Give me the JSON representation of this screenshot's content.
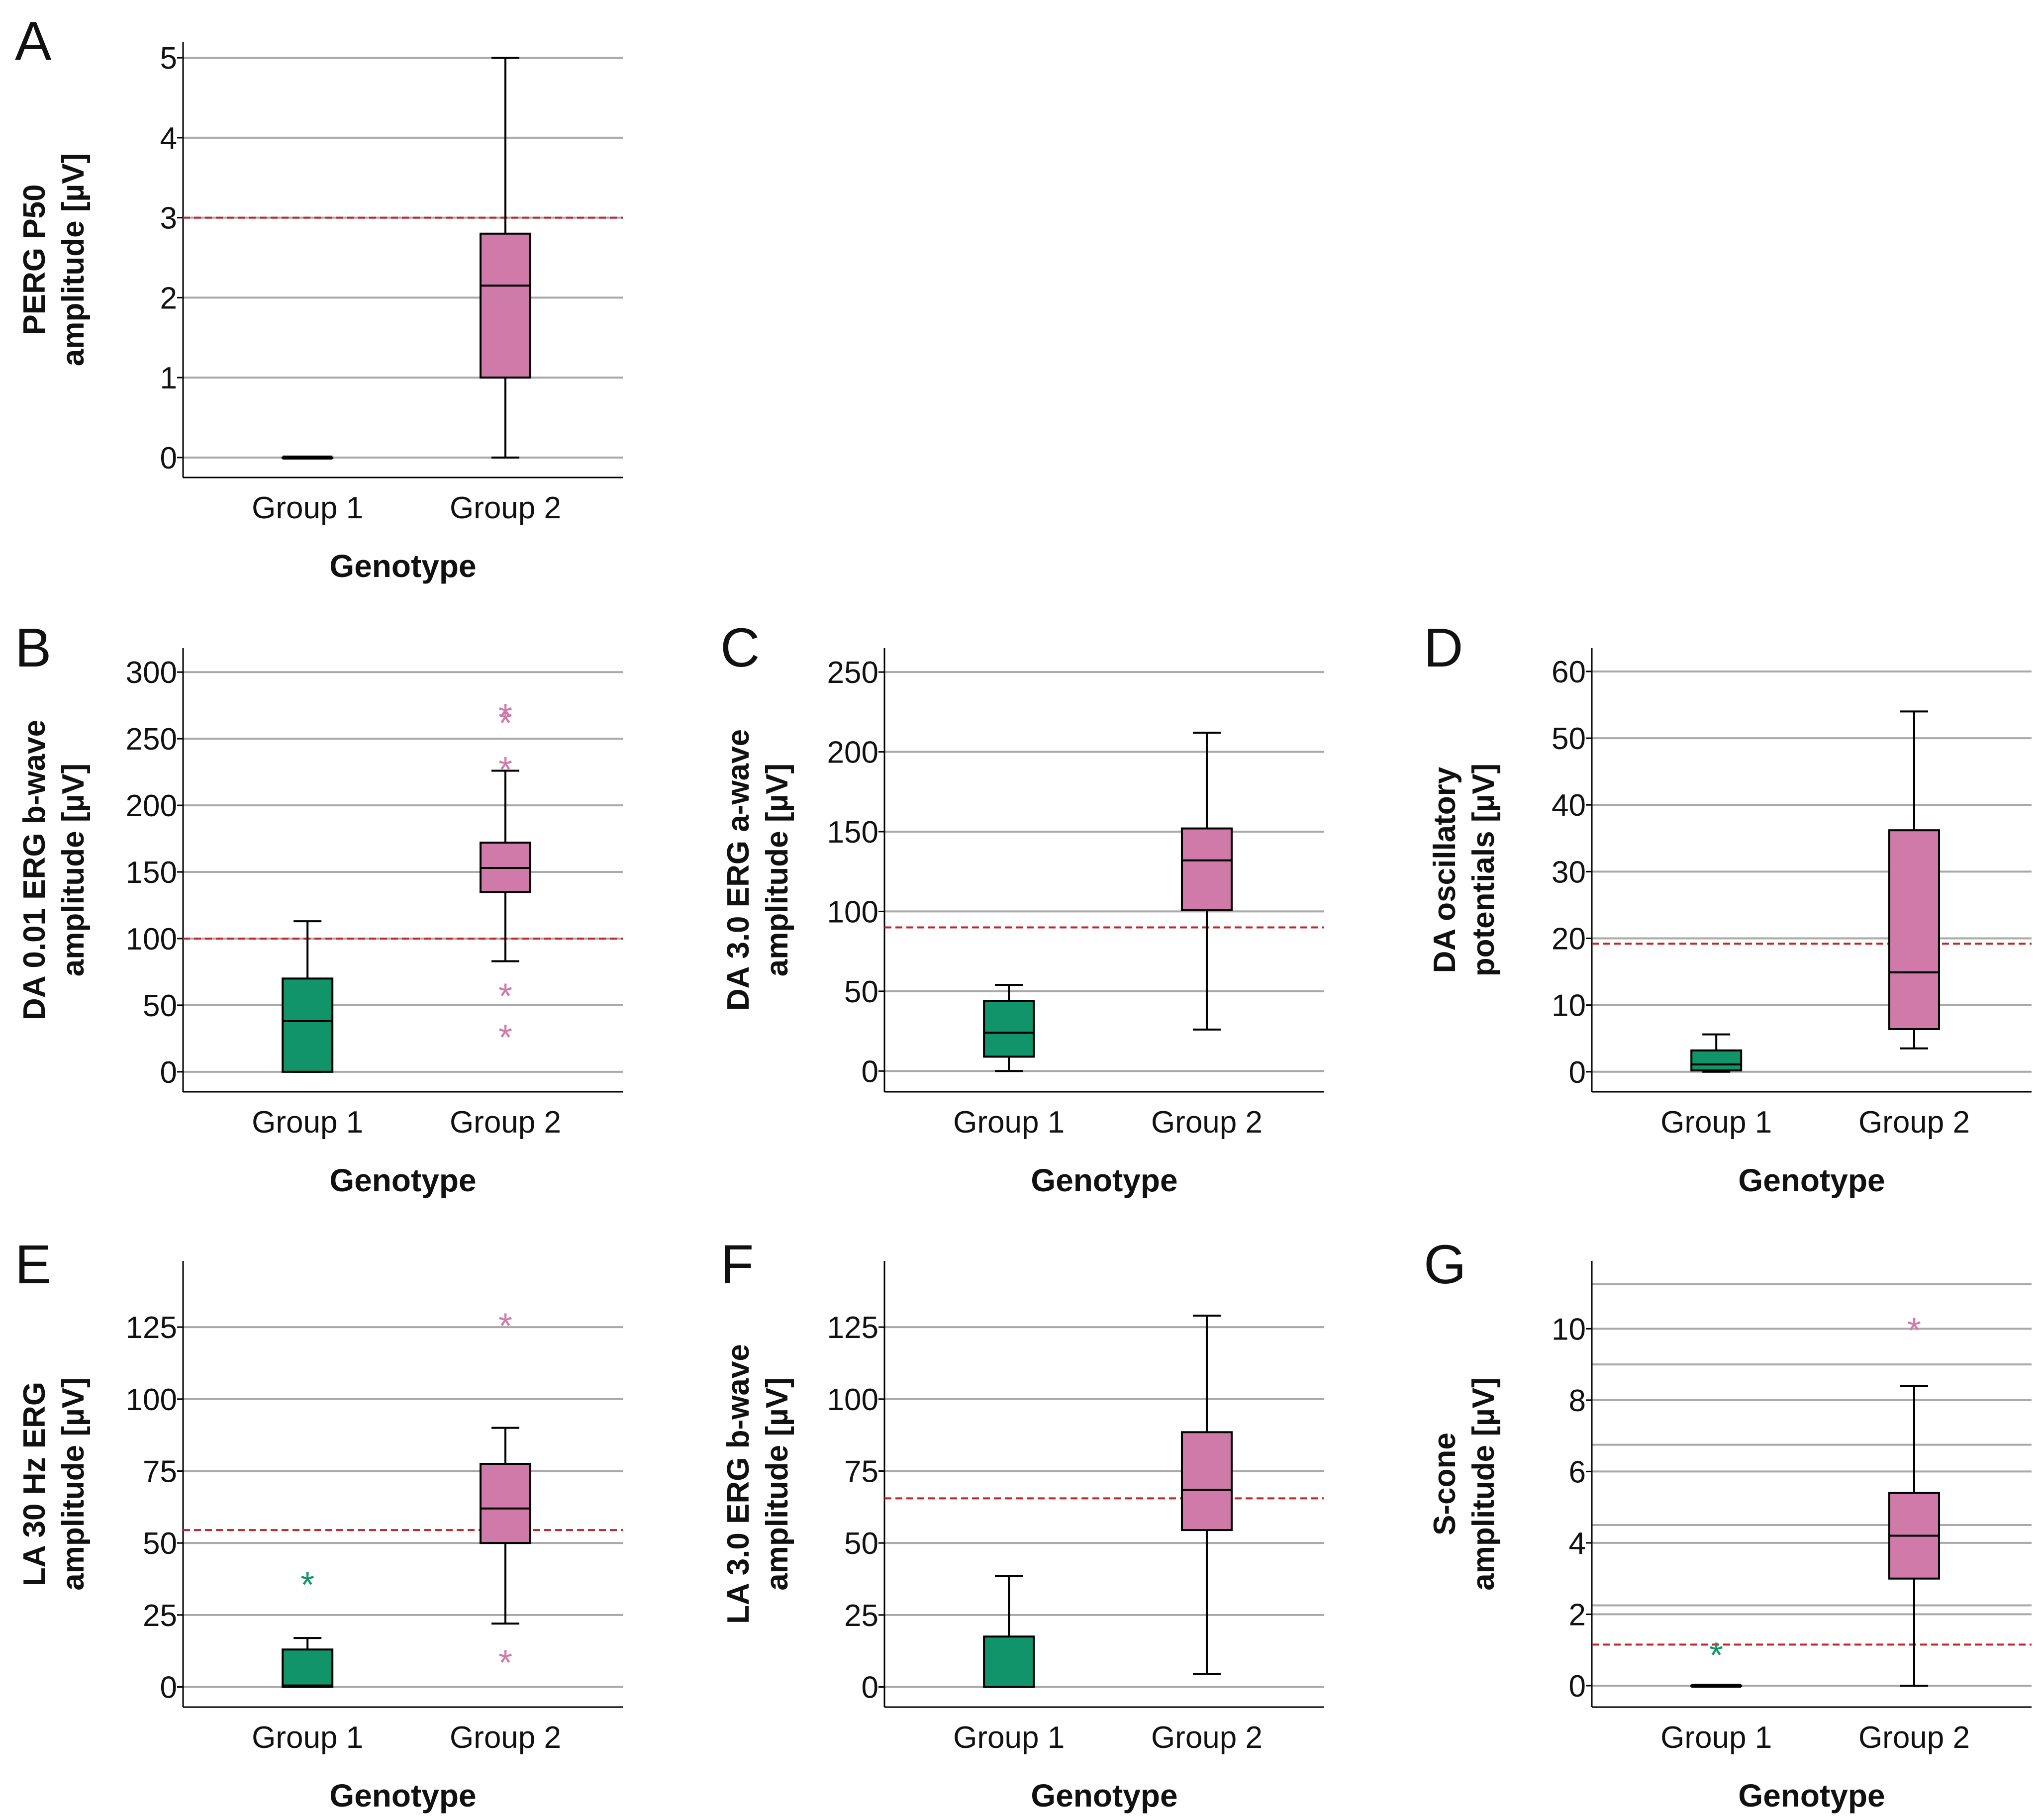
{
  "colors": {
    "group1": "#12946a",
    "group2": "#cf7aa9",
    "reference": "#c0262c",
    "grid": "#a9a9a9",
    "axis": "#000000"
  },
  "chart_data": [
    {
      "panel": "A",
      "type": "boxplot",
      "title": "",
      "xlabel": "Genotype",
      "ylabel_lines": [
        "PERG P50",
        "amplitude [µV]"
      ],
      "categories": [
        "Group 1",
        "Group 2"
      ],
      "ylim": [
        -0.25,
        5.2
      ],
      "yticks": [
        0,
        1,
        2,
        3,
        4,
        5
      ],
      "extra_gridlines": [],
      "reference_line": 3.0,
      "boxes": [
        {
          "group": "Group 1",
          "min": 0,
          "q1": 0,
          "median": 0,
          "q3": 0,
          "max": 0,
          "outliers": []
        },
        {
          "group": "Group 2",
          "min": 0,
          "q1": 1.0,
          "median": 2.15,
          "q3": 2.8,
          "max": 5.0,
          "outliers": []
        }
      ]
    },
    {
      "panel": "B",
      "type": "boxplot",
      "title": "",
      "xlabel": "Genotype",
      "ylabel_lines": [
        "DA 0.01 ERG b-wave",
        "amplitude [µV]"
      ],
      "categories": [
        "Group 1",
        "Group 2"
      ],
      "ylim": [
        -15,
        318
      ],
      "yticks": [
        0,
        50,
        100,
        150,
        200,
        250,
        300
      ],
      "extra_gridlines": [],
      "reference_line": 100,
      "boxes": [
        {
          "group": "Group 1",
          "min": 0,
          "q1": 0,
          "median": 38,
          "q3": 70,
          "max": 113,
          "outliers": []
        },
        {
          "group": "Group 2",
          "min": 83,
          "q1": 135,
          "median": 153,
          "q3": 172,
          "max": 226,
          "outliers": [
            27,
            58,
            228,
            263,
            268
          ]
        }
      ]
    },
    {
      "panel": "C",
      "type": "boxplot",
      "title": "",
      "xlabel": "Genotype",
      "ylabel_lines": [
        "DA 3.0 ERG a-wave",
        "amplitude [µV]"
      ],
      "categories": [
        "Group 1",
        "Group 2"
      ],
      "ylim": [
        -13,
        265
      ],
      "yticks": [
        0,
        50,
        100,
        150,
        200,
        250
      ],
      "extra_gridlines": [],
      "reference_line": 90,
      "boxes": [
        {
          "group": "Group 1",
          "min": 0,
          "q1": 9,
          "median": 24,
          "q3": 44,
          "max": 54,
          "outliers": []
        },
        {
          "group": "Group 2",
          "min": 26,
          "q1": 101,
          "median": 132,
          "q3": 152,
          "max": 212,
          "outliers": []
        }
      ]
    },
    {
      "panel": "D",
      "type": "boxplot",
      "title": "",
      "xlabel": "Genotype",
      "ylabel_lines": [
        "DA oscillatory",
        "potentials [µV]"
      ],
      "categories": [
        "Group 1",
        "Group 2"
      ],
      "ylim": [
        -3,
        63.5
      ],
      "yticks": [
        0,
        10,
        20,
        30,
        40,
        50,
        60
      ],
      "extra_gridlines": [],
      "reference_line": 19.2,
      "boxes": [
        {
          "group": "Group 1",
          "min": 0,
          "q1": 0.2,
          "median": 1.1,
          "q3": 3.2,
          "max": 5.6,
          "outliers": []
        },
        {
          "group": "Group 2",
          "min": 3.5,
          "q1": 6.4,
          "median": 14.9,
          "q3": 36.2,
          "max": 54.0,
          "outliers": []
        }
      ]
    },
    {
      "panel": "E",
      "type": "boxplot",
      "title": "",
      "xlabel": "Genotype",
      "ylabel_lines": [
        "LA 30 Hz ERG",
        "amplitude [µV]"
      ],
      "categories": [
        "Group 1",
        "Group 2"
      ],
      "ylim": [
        -7,
        148
      ],
      "yticks": [
        0,
        25,
        50,
        75,
        100,
        125
      ],
      "extra_gridlines": [],
      "reference_line": 54.5,
      "boxes": [
        {
          "group": "Group 1",
          "min": 0,
          "q1": 0,
          "median": 0.5,
          "q3": 13,
          "max": 17,
          "outliers": [
            36
          ]
        },
        {
          "group": "Group 2",
          "min": 22,
          "q1": 50,
          "median": 62,
          "q3": 77.5,
          "max": 90,
          "outliers": [
            9,
            126
          ]
        }
      ]
    },
    {
      "panel": "F",
      "type": "boxplot",
      "title": "",
      "xlabel": "Genotype",
      "ylabel_lines": [
        "LA 3.0 ERG b-wave",
        "amplitude [µV]"
      ],
      "categories": [
        "Group 1",
        "Group 2"
      ],
      "ylim": [
        -7,
        148
      ],
      "yticks": [
        0,
        25,
        50,
        75,
        100,
        125
      ],
      "extra_gridlines": [],
      "reference_line": 65.5,
      "boxes": [
        {
          "group": "Group 1",
          "min": 0,
          "q1": 0,
          "median": 0,
          "q3": 17.5,
          "max": 38.5,
          "outliers": []
        },
        {
          "group": "Group 2",
          "min": 4.5,
          "q1": 54.5,
          "median": 68.5,
          "q3": 88.5,
          "max": 129,
          "outliers": []
        }
      ]
    },
    {
      "panel": "G",
      "type": "boxplot",
      "title": "",
      "xlabel": "Genotype",
      "ylabel_lines": [
        "S-cone",
        "amplitude [µV]"
      ],
      "categories": [
        "Group 1",
        "Group 2"
      ],
      "ylim": [
        -0.6,
        11.9
      ],
      "yticks": [
        0,
        2,
        4,
        6,
        8,
        10
      ],
      "extra_gridlines": [
        2.25,
        4.5,
        6.75,
        9.0,
        11.25
      ],
      "reference_line": 1.15,
      "boxes": [
        {
          "group": "Group 1",
          "min": 0,
          "q1": 0,
          "median": 0,
          "q3": 0,
          "max": 0,
          "outliers": [
            0.9
          ]
        },
        {
          "group": "Group 2",
          "min": 0,
          "q1": 3.0,
          "median": 4.2,
          "q3": 5.4,
          "max": 8.4,
          "outliers": [
            10
          ]
        }
      ]
    }
  ]
}
